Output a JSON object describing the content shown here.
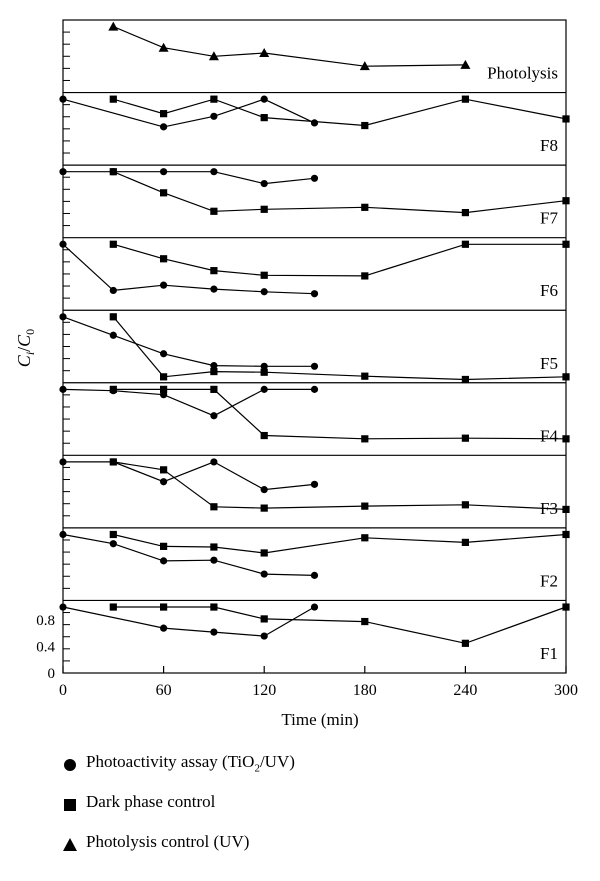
{
  "chart_data": {
    "type": "line",
    "xlabel": "Time (min)",
    "ylabel": "C_i/C_0",
    "x_ticks": [
      0,
      60,
      120,
      180,
      240,
      300
    ],
    "xlim": [
      0,
      300
    ],
    "y_ticks_bottom_panel": [
      "0",
      "0.4",
      "0.8"
    ],
    "panel_ylim": [
      0,
      1.1
    ],
    "legend": [
      {
        "key": "photo",
        "marker": "circle",
        "label": "Photoactivity assay (TiO",
        "sub": "2",
        "suffix": "/UV)"
      },
      {
        "key": "dark",
        "marker": "square",
        "label": "Dark phase control",
        "sub": "",
        "suffix": ""
      },
      {
        "key": "photolysis",
        "marker": "triangle",
        "label": "Photolysis control (UV)",
        "sub": "",
        "suffix": ""
      }
    ],
    "panels": [
      {
        "label": "Photolysis",
        "series": [
          {
            "key": "photolysis",
            "x": [
              30,
              60,
              90,
              120,
              180,
              240
            ],
            "y": [
              1.0,
              0.68,
              0.55,
              0.6,
              0.4,
              0.42
            ]
          }
        ]
      },
      {
        "label": "F8",
        "series": [
          {
            "key": "photo",
            "x": [
              0,
              60,
              90,
              120,
              150
            ],
            "y": [
              1.0,
              0.58,
              0.74,
              1.0,
              0.64
            ]
          },
          {
            "key": "dark",
            "x": [
              30,
              60,
              90,
              120,
              180,
              240,
              300
            ],
            "y": [
              1.0,
              0.78,
              1.0,
              0.72,
              0.6,
              1.0,
              0.7
            ]
          }
        ]
      },
      {
        "label": "F7",
        "series": [
          {
            "key": "photo",
            "x": [
              0,
              30,
              60,
              90,
              120,
              150
            ],
            "y": [
              1.0,
              1.0,
              1.0,
              1.0,
              0.82,
              0.9
            ]
          },
          {
            "key": "dark",
            "x": [
              30,
              60,
              90,
              120,
              180,
              240,
              300
            ],
            "y": [
              1.0,
              0.68,
              0.4,
              0.43,
              0.46,
              0.38,
              0.56
            ]
          }
        ]
      },
      {
        "label": "F6",
        "series": [
          {
            "key": "photo",
            "x": [
              0,
              30,
              60,
              90,
              120,
              150
            ],
            "y": [
              1.0,
              0.3,
              0.38,
              0.32,
              0.28,
              0.25
            ]
          },
          {
            "key": "dark",
            "x": [
              30,
              60,
              90,
              120,
              180,
              240,
              300
            ],
            "y": [
              1.0,
              0.78,
              0.6,
              0.53,
              0.52,
              1.0,
              1.0
            ]
          }
        ]
      },
      {
        "label": "F5",
        "series": [
          {
            "key": "photo",
            "x": [
              0,
              30,
              60,
              90,
              120,
              150
            ],
            "y": [
              1.0,
              0.72,
              0.44,
              0.26,
              0.25,
              0.25
            ]
          },
          {
            "key": "dark",
            "x": [
              30,
              60,
              90,
              120,
              180,
              240,
              300
            ],
            "y": [
              1.0,
              0.09,
              0.17,
              0.16,
              0.1,
              0.05,
              0.09
            ]
          }
        ]
      },
      {
        "label": "F4",
        "series": [
          {
            "key": "photo",
            "x": [
              0,
              30,
              60,
              90,
              120,
              150
            ],
            "y": [
              1.0,
              0.98,
              0.92,
              0.6,
              1.0,
              1.0
            ]
          },
          {
            "key": "dark",
            "x": [
              30,
              60,
              90,
              120,
              180,
              240,
              300
            ],
            "y": [
              1.0,
              1.0,
              1.0,
              0.3,
              0.25,
              0.26,
              0.25
            ]
          }
        ]
      },
      {
        "label": "F3",
        "series": [
          {
            "key": "photo",
            "x": [
              0,
              30,
              60,
              90,
              120,
              150
            ],
            "y": [
              1.0,
              1.0,
              0.7,
              1.0,
              0.58,
              0.66
            ]
          },
          {
            "key": "dark",
            "x": [
              30,
              60,
              90,
              120,
              180,
              240,
              300
            ],
            "y": [
              1.0,
              0.88,
              0.32,
              0.3,
              0.33,
              0.35,
              0.28
            ]
          }
        ]
      },
      {
        "label": "F2",
        "series": [
          {
            "key": "photo",
            "x": [
              0,
              30,
              60,
              90,
              120,
              150
            ],
            "y": [
              1.0,
              0.86,
              0.6,
              0.61,
              0.4,
              0.38
            ]
          },
          {
            "key": "dark",
            "x": [
              30,
              60,
              90,
              120,
              180,
              240,
              300
            ],
            "y": [
              1.0,
              0.82,
              0.81,
              0.72,
              0.95,
              0.88,
              1.0
            ]
          }
        ]
      },
      {
        "label": "F1",
        "series": [
          {
            "key": "photo",
            "x": [
              0,
              60,
              90,
              120,
              150
            ],
            "y": [
              1.0,
              0.68,
              0.62,
              0.56,
              1.0
            ]
          },
          {
            "key": "dark",
            "x": [
              30,
              60,
              90,
              120,
              180,
              240,
              300
            ],
            "y": [
              1.0,
              1.0,
              1.0,
              0.82,
              0.78,
              0.45,
              1.0
            ]
          }
        ]
      }
    ]
  }
}
